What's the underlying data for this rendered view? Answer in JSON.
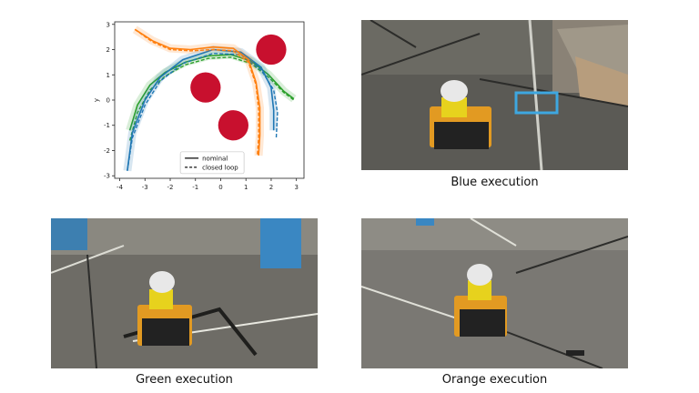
{
  "chart_data": {
    "type": "line",
    "title": "",
    "xlabel": "x",
    "ylabel": "y",
    "xlim": [
      -4.2,
      3.3
    ],
    "ylim": [
      -3.1,
      3.1
    ],
    "xticks": [
      -4,
      -3,
      -2,
      -1,
      0,
      1,
      2,
      3
    ],
    "yticks": [
      -3,
      -2,
      -1,
      0,
      1,
      2,
      3
    ],
    "legend": {
      "position": "bottom-center",
      "entries": [
        "nominal",
        "closed loop"
      ]
    },
    "obstacles": [
      {
        "x": 2.0,
        "y": 2.0,
        "r": 0.6
      },
      {
        "x": -0.6,
        "y": 0.5,
        "r": 0.6
      },
      {
        "x": 0.5,
        "y": -1.0,
        "r": 0.6
      }
    ],
    "series": [
      {
        "color": "#2ca02c",
        "nominal": [
          [
            -3.6,
            -1.2
          ],
          [
            -3.3,
            -0.2
          ],
          [
            -2.8,
            0.6
          ],
          [
            -2.2,
            1.1
          ],
          [
            -1.4,
            1.5
          ],
          [
            -0.5,
            1.75
          ],
          [
            0.4,
            1.8
          ],
          [
            1.2,
            1.55
          ],
          [
            1.9,
            1.0
          ],
          [
            2.5,
            0.35
          ],
          [
            2.9,
            0.05
          ]
        ],
        "closed_loop": [
          [
            -3.6,
            -1.6
          ],
          [
            -3.3,
            -0.5
          ],
          [
            -2.8,
            0.4
          ],
          [
            -2.2,
            0.95
          ],
          [
            -1.4,
            1.4
          ],
          [
            -0.5,
            1.65
          ],
          [
            0.4,
            1.7
          ],
          [
            1.2,
            1.45
          ],
          [
            1.9,
            0.9
          ],
          [
            2.5,
            0.3
          ],
          [
            2.9,
            0.0
          ]
        ]
      },
      {
        "color": "#1f77b4",
        "nominal": [
          [
            -3.7,
            -2.8
          ],
          [
            -3.5,
            -1.3
          ],
          [
            -3.0,
            0.0
          ],
          [
            -2.4,
            0.9
          ],
          [
            -1.5,
            1.6
          ],
          [
            -0.3,
            2.0
          ],
          [
            0.8,
            1.9
          ],
          [
            1.6,
            1.3
          ],
          [
            2.0,
            0.5
          ],
          [
            2.1,
            -0.4
          ],
          [
            2.1,
            -1.2
          ]
        ],
        "closed_loop": [
          [
            -3.7,
            -2.8
          ],
          [
            -3.5,
            -1.5
          ],
          [
            -3.0,
            -0.2
          ],
          [
            -2.4,
            0.75
          ],
          [
            -1.5,
            1.45
          ],
          [
            -0.3,
            1.85
          ],
          [
            0.8,
            1.8
          ],
          [
            1.6,
            1.2
          ],
          [
            2.1,
            0.4
          ],
          [
            2.25,
            -0.5
          ],
          [
            2.2,
            -1.5
          ]
        ]
      },
      {
        "color": "#ff7f0e",
        "nominal": [
          [
            -3.4,
            2.8
          ],
          [
            -2.7,
            2.35
          ],
          [
            -2.0,
            2.05
          ],
          [
            -1.2,
            2.0
          ],
          [
            -0.3,
            2.1
          ],
          [
            0.5,
            2.05
          ],
          [
            1.1,
            1.6
          ],
          [
            1.4,
            0.7
          ],
          [
            1.55,
            -0.3
          ],
          [
            1.55,
            -1.4
          ],
          [
            1.5,
            -2.2
          ]
        ],
        "closed_loop": [
          [
            -3.4,
            2.8
          ],
          [
            -2.7,
            2.3
          ],
          [
            -2.0,
            2.0
          ],
          [
            -1.2,
            1.95
          ],
          [
            -0.3,
            2.0
          ],
          [
            0.5,
            1.95
          ],
          [
            1.1,
            1.5
          ],
          [
            1.4,
            0.6
          ],
          [
            1.5,
            -0.4
          ],
          [
            1.5,
            -1.5
          ],
          [
            1.45,
            -2.2
          ]
        ]
      }
    ]
  },
  "captions": {
    "blue": "Blue execution",
    "green": "Green execution",
    "orange": "Orange execution"
  }
}
